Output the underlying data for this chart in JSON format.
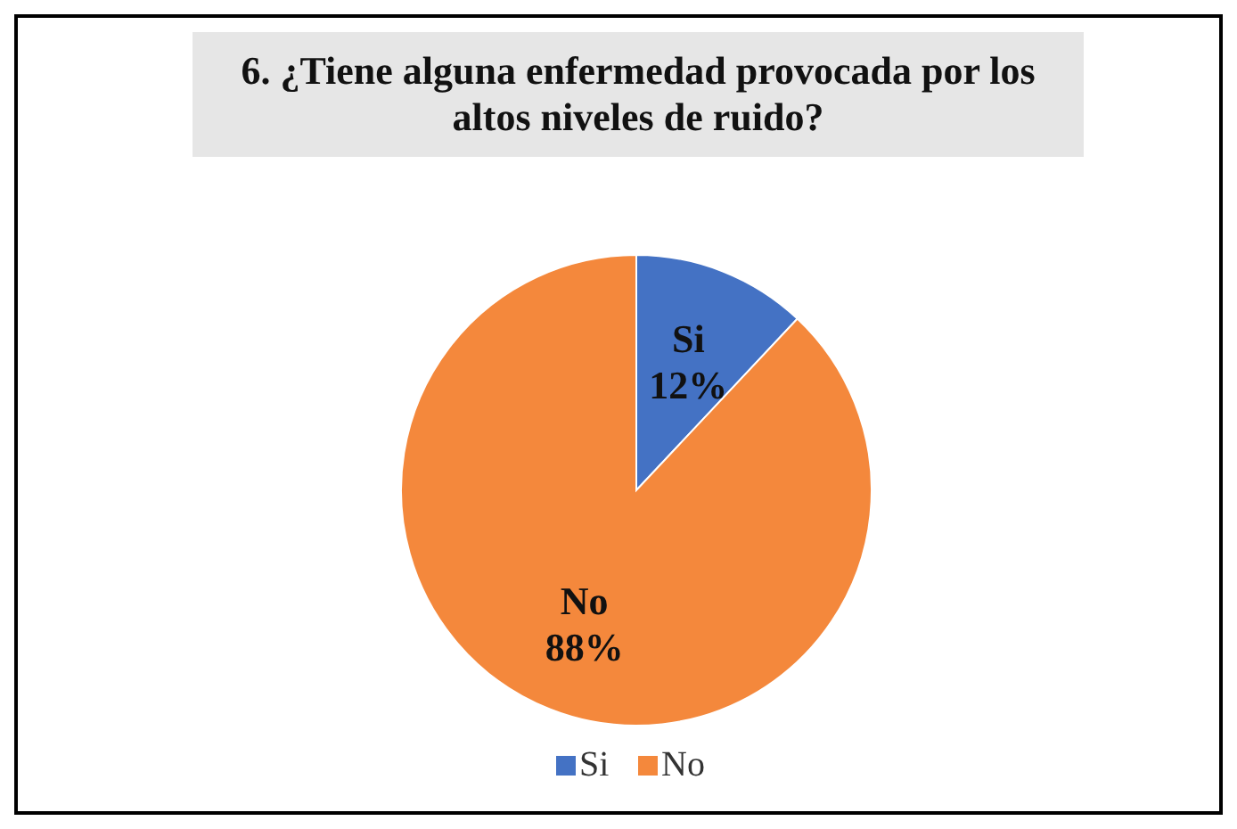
{
  "chart_data": {
    "type": "pie",
    "title": "6. ¿Tiene alguna enfermedad provocada por los altos niveles de ruido?",
    "categories": [
      "Si",
      "No"
    ],
    "values": [
      12,
      88
    ],
    "colors": [
      "#4472c4",
      "#f4883c"
    ],
    "value_labels": [
      "12%",
      "88%"
    ],
    "legend": "bottom"
  }
}
